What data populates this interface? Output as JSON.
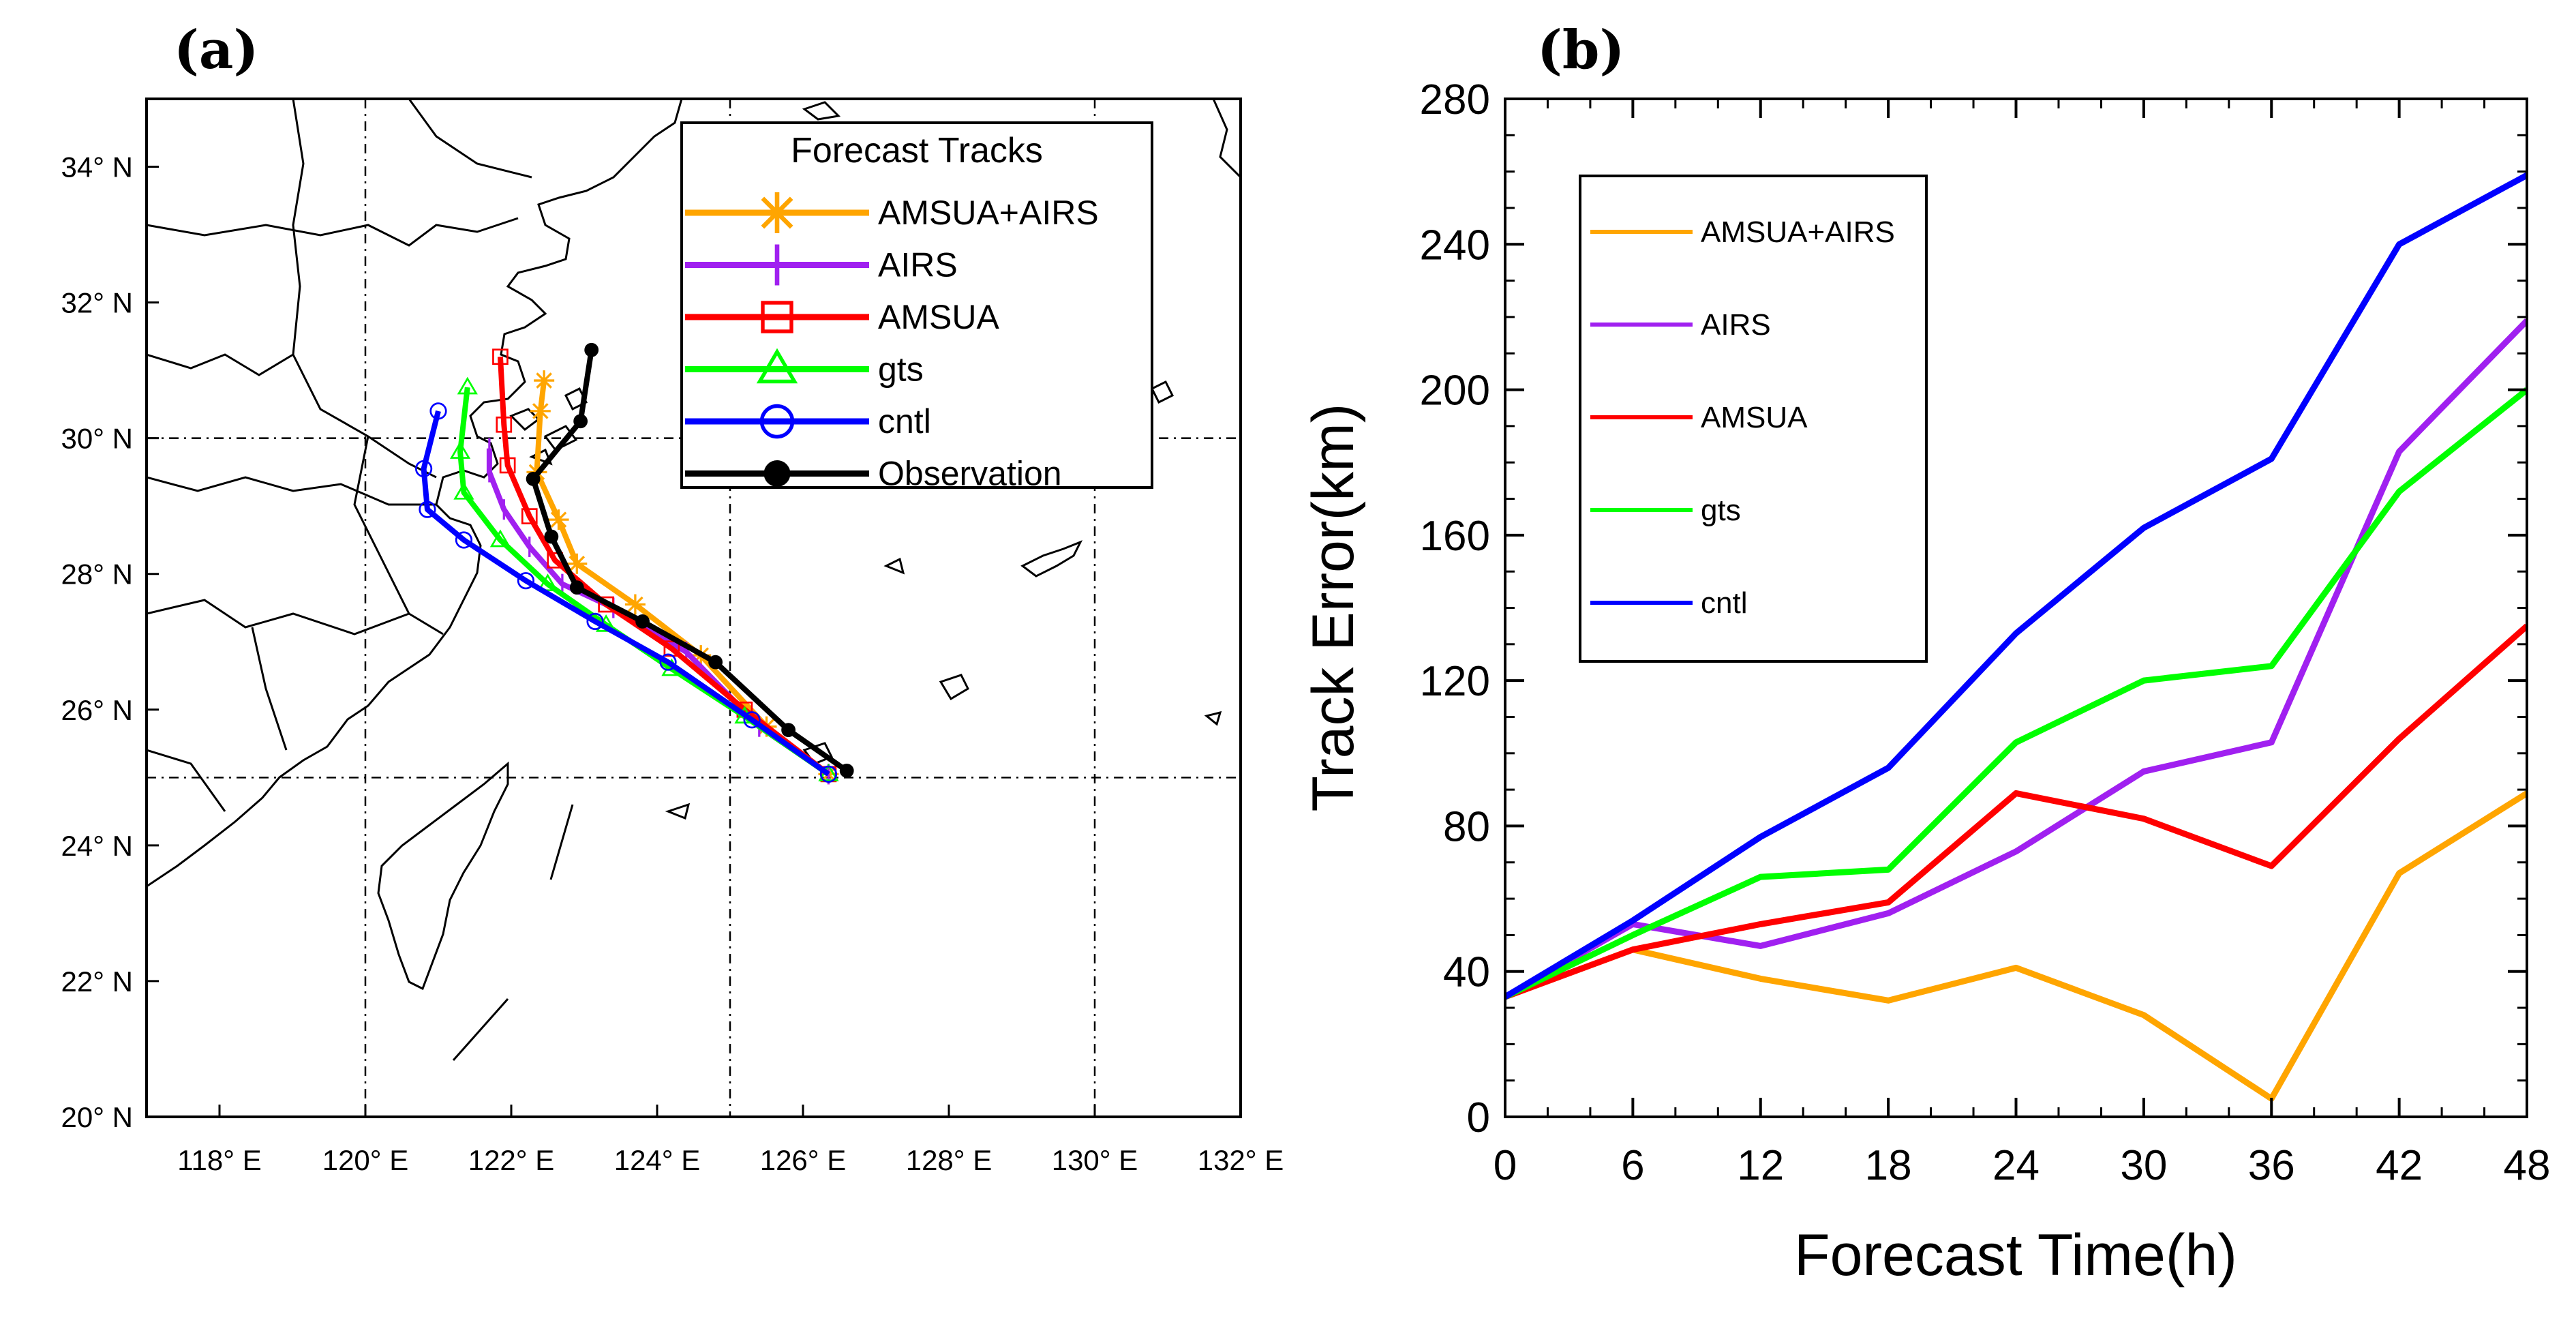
{
  "chart_data": [
    {
      "type": "map",
      "panel_label": "(a)",
      "xlim": [
        117,
        132
      ],
      "ylim": [
        20,
        35
      ],
      "x_ticks": [
        118,
        120,
        122,
        124,
        126,
        128,
        130,
        132
      ],
      "x_tick_labels": [
        "118° E",
        "120° E",
        "122° E",
        "124° E",
        "126° E",
        "128° E",
        "130° E",
        "132° E"
      ],
      "y_ticks": [
        20,
        22,
        24,
        26,
        28,
        30,
        32,
        34
      ],
      "y_tick_labels": [
        "20° N",
        "22° N",
        "24° N",
        "26° N",
        "28° N",
        "30° N",
        "32° N",
        "34° N"
      ],
      "grid_lon": [
        120,
        125,
        130
      ],
      "grid_lat": [
        25,
        30
      ],
      "legend_title": "Forecast Tracks",
      "legend_position": "top-right",
      "series": [
        {
          "name": "AMSUA+AIRS",
          "color": "#ffa500",
          "marker": "asterisk",
          "points": [
            [
              126.35,
              25.05
            ],
            [
              125.5,
              25.75
            ],
            [
              124.6,
              26.8
            ],
            [
              123.7,
              27.55
            ],
            [
              122.9,
              28.15
            ],
            [
              122.65,
              28.8
            ],
            [
              122.35,
              29.5
            ],
            [
              122.4,
              30.4
            ],
            [
              122.45,
              30.85
            ]
          ]
        },
        {
          "name": "AIRS",
          "color": "#a020f0",
          "marker": "plus",
          "points": [
            [
              126.35,
              25.05
            ],
            [
              125.4,
              25.75
            ],
            [
              124.4,
              26.85
            ],
            [
              123.4,
              27.5
            ],
            [
              122.7,
              27.85
            ],
            [
              122.25,
              28.4
            ],
            [
              121.9,
              28.95
            ],
            [
              121.7,
              29.5
            ],
            [
              121.7,
              29.85
            ]
          ]
        },
        {
          "name": "AMSUA",
          "color": "#ff0000",
          "marker": "square",
          "points": [
            [
              126.35,
              25.05
            ],
            [
              125.2,
              26.0
            ],
            [
              124.2,
              26.9
            ],
            [
              123.3,
              27.55
            ],
            [
              122.6,
              28.2
            ],
            [
              122.25,
              28.85
            ],
            [
              121.95,
              29.6
            ],
            [
              121.9,
              30.2
            ],
            [
              121.85,
              31.2
            ]
          ]
        },
        {
          "name": "gts",
          "color": "#00ff00",
          "marker": "triangle",
          "points": [
            [
              126.35,
              25.05
            ],
            [
              125.2,
              25.9
            ],
            [
              124.2,
              26.6
            ],
            [
              123.3,
              27.25
            ],
            [
              122.5,
              27.85
            ],
            [
              121.85,
              28.5
            ],
            [
              121.35,
              29.2
            ],
            [
              121.3,
              29.8
            ],
            [
              121.4,
              30.75
            ]
          ]
        },
        {
          "name": "cntl",
          "color": "#0000ff",
          "marker": "circle",
          "points": [
            [
              126.35,
              25.05
            ],
            [
              125.3,
              25.85
            ],
            [
              124.15,
              26.7
            ],
            [
              123.15,
              27.3
            ],
            [
              122.2,
              27.9
            ],
            [
              121.35,
              28.5
            ],
            [
              120.85,
              28.95
            ],
            [
              120.8,
              29.55
            ],
            [
              121.0,
              30.4
            ]
          ]
        },
        {
          "name": "Observation",
          "color": "#000000",
          "marker": "dot",
          "points": [
            [
              126.6,
              25.1
            ],
            [
              125.8,
              25.7
            ],
            [
              124.8,
              26.7
            ],
            [
              123.8,
              27.3
            ],
            [
              122.9,
              27.8
            ],
            [
              122.55,
              28.55
            ],
            [
              122.3,
              29.4
            ],
            [
              122.95,
              30.25
            ],
            [
              123.1,
              31.3
            ]
          ]
        }
      ]
    },
    {
      "type": "line",
      "panel_label": "(b)",
      "xlabel": "Forecast Time(h)",
      "ylabel": "Track Error(km)",
      "x": [
        0,
        6,
        12,
        18,
        24,
        30,
        36,
        42,
        48
      ],
      "xlim": [
        0,
        48
      ],
      "ylim": [
        0,
        280
      ],
      "x_ticks": [
        0,
        6,
        12,
        18,
        24,
        30,
        36,
        42,
        48
      ],
      "y_ticks": [
        0,
        40,
        80,
        120,
        160,
        200,
        240,
        280
      ],
      "legend_position": "top-left",
      "series": [
        {
          "name": "AMSUA+AIRS",
          "color": "#ffa500",
          "values": [
            33,
            46,
            38,
            32,
            41,
            28,
            5,
            67,
            89
          ]
        },
        {
          "name": "AIRS",
          "color": "#a020f0",
          "values": [
            33,
            53,
            47,
            56,
            73,
            95,
            103,
            183,
            219
          ]
        },
        {
          "name": "AMSUA",
          "color": "#ff0000",
          "values": [
            33,
            46,
            53,
            59,
            89,
            82,
            69,
            104,
            135
          ]
        },
        {
          "name": "gts",
          "color": "#00ff00",
          "values": [
            33,
            50,
            66,
            68,
            103,
            120,
            124,
            172,
            200
          ]
        },
        {
          "name": "cntl",
          "color": "#0000ff",
          "values": [
            33,
            54,
            77,
            96,
            133,
            162,
            181,
            240,
            259
          ]
        }
      ]
    }
  ]
}
